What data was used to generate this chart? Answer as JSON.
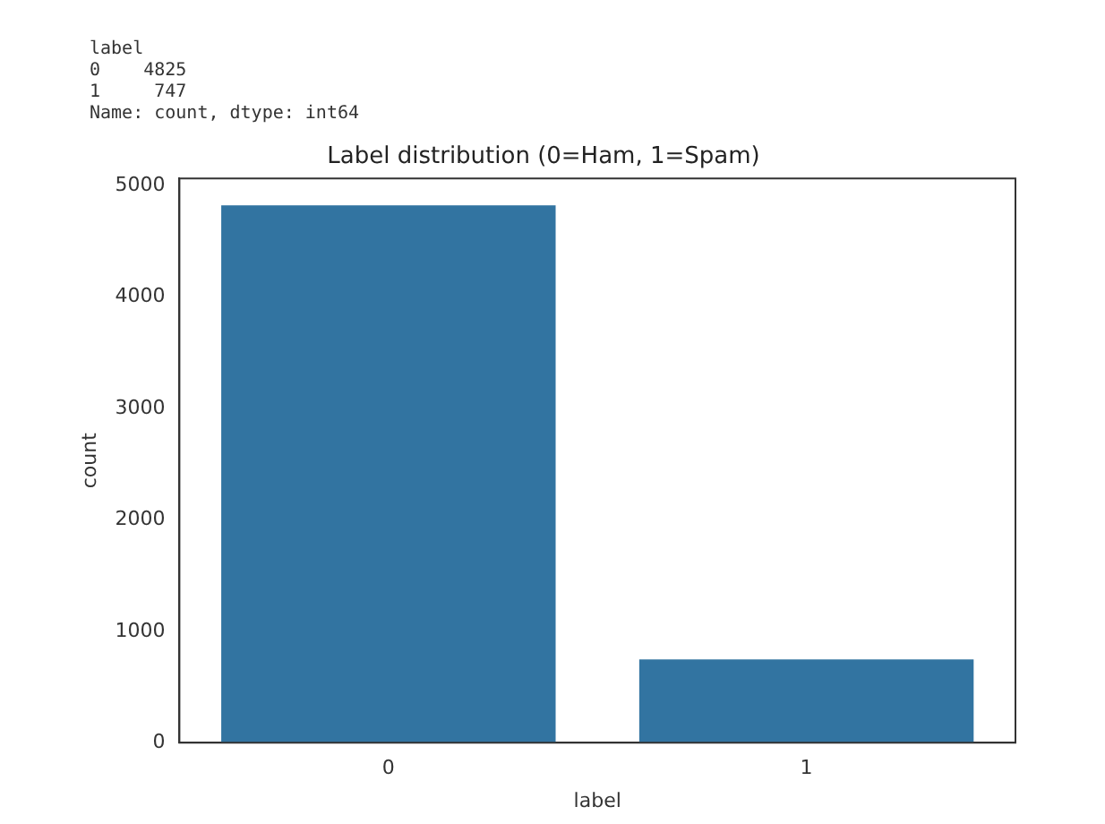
{
  "chart_data": {
    "type": "bar",
    "title": "Label distribution (0=Ham, 1=Spam)",
    "xlabel": "label",
    "ylabel": "count",
    "categories": [
      "0",
      "1"
    ],
    "values": [
      4825,
      747
    ],
    "color": "#3274a1",
    "ylim": [
      0,
      5066
    ],
    "yticks": [
      0,
      1000,
      2000,
      3000,
      4000,
      5000
    ],
    "grid": false,
    "legend": false,
    "annotations": [
      "label\n0    4825\n1     747\nName: count, dtype: int64"
    ]
  }
}
